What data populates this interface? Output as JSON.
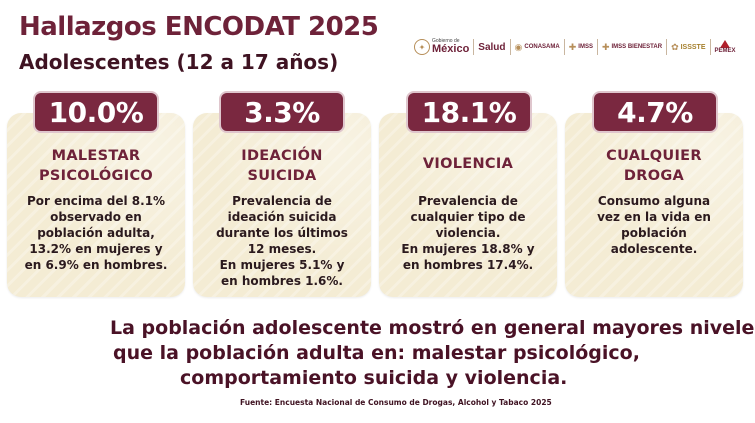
{
  "header": {
    "title": "Hallazgos ENCODAT 2025",
    "subtitle": "Adolescentes (12 a 17 años)"
  },
  "logos": {
    "gobierno_small": "Gobierno de",
    "gobierno_big": "México",
    "salud": "Salud",
    "conasama": "CONASAMA",
    "imss": "IMSS",
    "imss_bienestar": "IMSS BIENESTAR",
    "issste": "ISSSTE",
    "pemex": "PEMEX"
  },
  "cards": [
    {
      "value": "10.0%",
      "heading": [
        "MALESTAR",
        "PSICOLÓGICO"
      ],
      "body": [
        "Por encima del 8.1%",
        "observado en",
        "población adulta,",
        "13.2% en mujeres y",
        "en 6.9% en hombres."
      ]
    },
    {
      "value": "3.3%",
      "heading": [
        "IDEACIÓN",
        "SUICIDA"
      ],
      "body": [
        "Prevalencia de",
        "ideación suicida",
        "durante los últimos",
        "12 meses.",
        "En mujeres 5.1% y",
        "en hombres 1.6%."
      ]
    },
    {
      "value": "18.1%",
      "heading": [
        "VIOLENCIA"
      ],
      "body": [
        "Prevalencia de",
        "cualquier tipo de",
        "violencia.",
        "En mujeres 18.8% y",
        "en hombres 17.4%."
      ]
    },
    {
      "value": "4.7%",
      "heading": [
        "CUALQUIER",
        "DROGA"
      ],
      "body": [
        "Consumo alguna",
        "vez en la vida en",
        "población",
        "adolescente."
      ]
    }
  ],
  "summary": [
    "La población adolescente mostró en general mayores niveles",
    "que la población adulta en: malestar psicológico,",
    "comportamiento suicida y violencia."
  ],
  "source": "Fuente: Encuesta Nacional de Consumo de Drogas, Alcohol y Tabaco 2025",
  "colors": {
    "brand": "#6e2239",
    "badge": "#7a2840",
    "card": "#f4ecd4",
    "gold": "#b78f5a"
  }
}
